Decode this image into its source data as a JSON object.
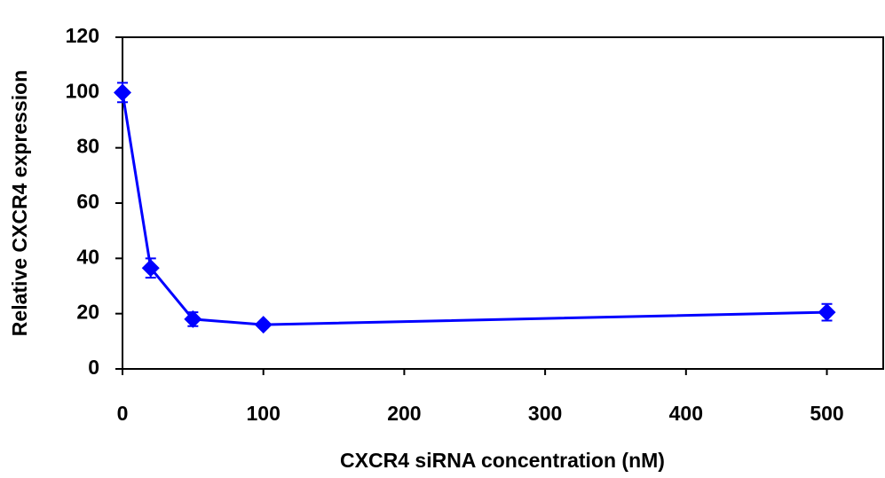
{
  "chart_data": {
    "type": "line",
    "x_label": "CXCR4 siRNA concentration (nM)",
    "y_label": "Relative CXCR4 expression",
    "x": [
      0,
      20,
      50,
      100,
      500
    ],
    "series": [
      {
        "color": "#0000ff",
        "values": [
          100,
          36.5,
          18,
          16,
          20.5
        ],
        "errors": [
          3.5,
          3.5,
          2.5,
          1,
          3
        ]
      }
    ],
    "xlim": [
      0,
      540
    ],
    "xticks": [
      0,
      100,
      200,
      300,
      400,
      500
    ],
    "ylim": [
      0,
      120
    ],
    "yticks": [
      0,
      20,
      40,
      60,
      80,
      100,
      120
    ],
    "grid": false
  }
}
